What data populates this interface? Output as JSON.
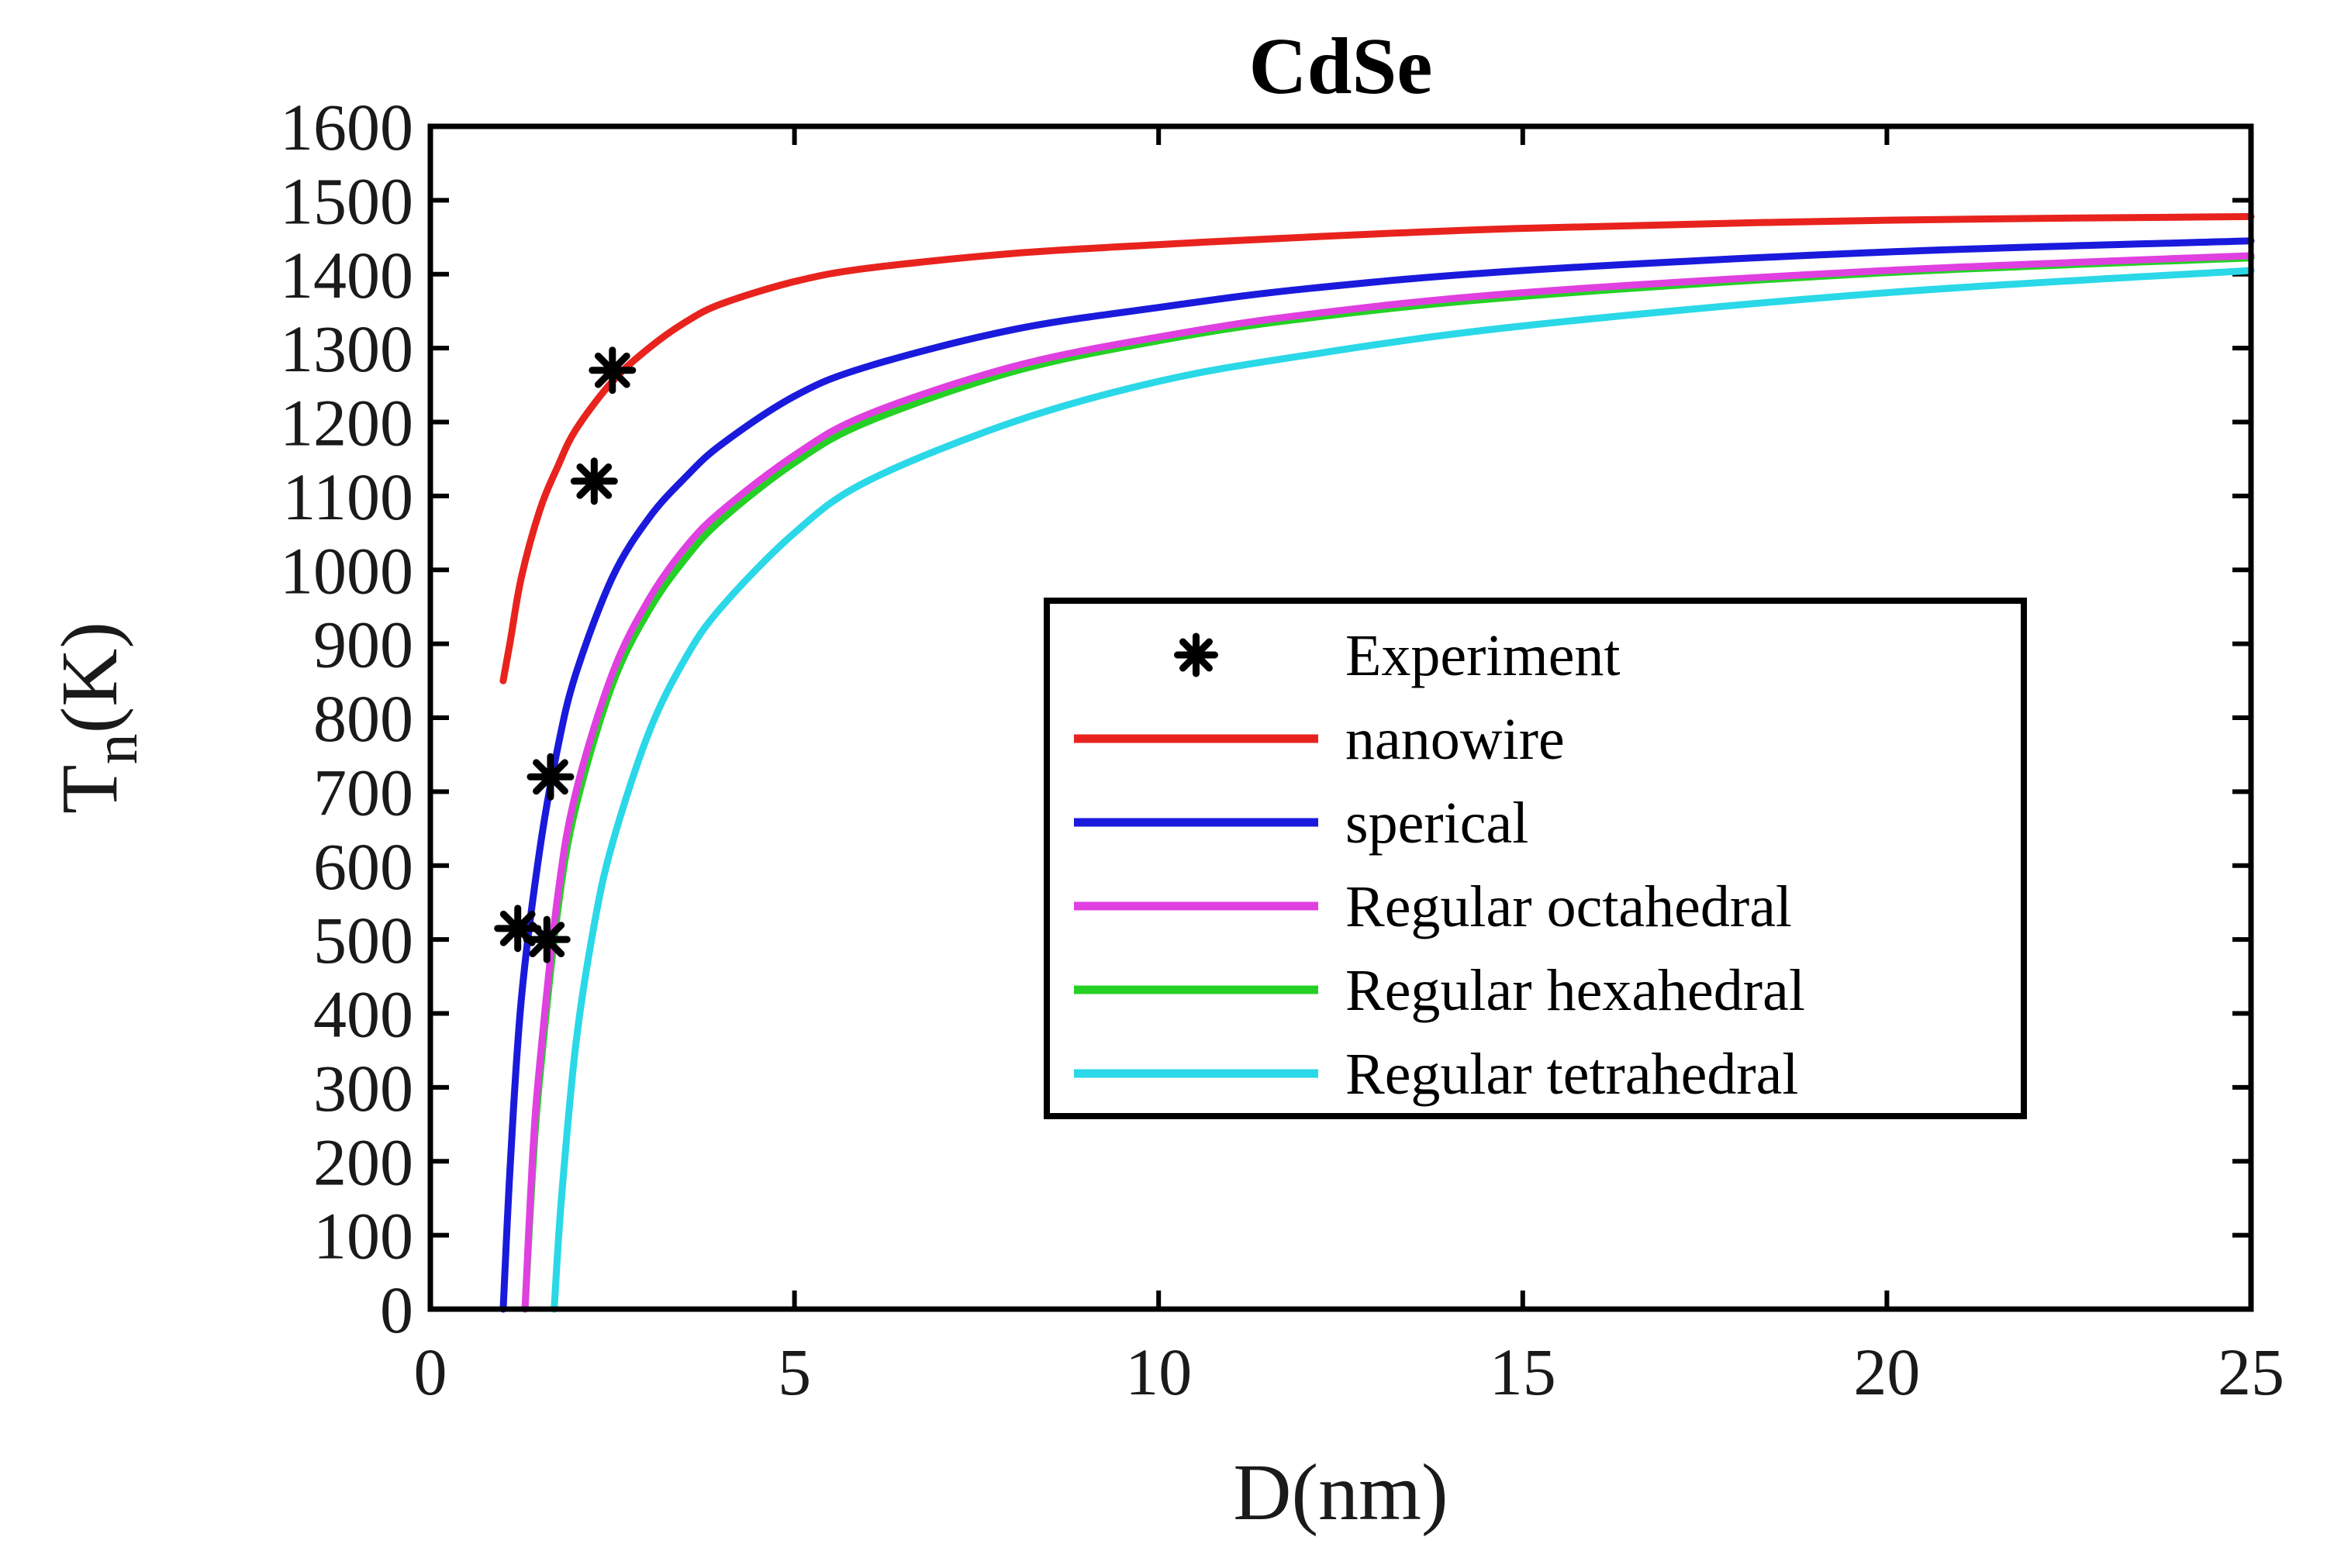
{
  "chart_data": {
    "type": "line",
    "title": "CdSe",
    "xlabel": "D(nm)",
    "ylabel": {
      "main": "T",
      "sub": "n",
      "unit": "(K)"
    },
    "xlim": [
      0,
      25
    ],
    "ylim": [
      0,
      1600
    ],
    "xticks": [
      0,
      5,
      10,
      15,
      20,
      25
    ],
    "yticks": [
      0,
      100,
      200,
      300,
      400,
      500,
      600,
      700,
      800,
      900,
      1000,
      1100,
      1200,
      1300,
      1400,
      1500,
      1600
    ],
    "legend_position": "center-right",
    "experiment": {
      "name": "Experiment",
      "points": [
        [
          2.5,
          1270
        ],
        [
          2.25,
          1120
        ],
        [
          1.65,
          720
        ],
        [
          1.2,
          515
        ],
        [
          1.6,
          500
        ]
      ]
    },
    "series": [
      {
        "name": "nanowire",
        "color": "#e8231e",
        "x": [
          1.0,
          1.1,
          1.25,
          1.5,
          1.75,
          2.0,
          2.5,
          3.0,
          3.5,
          4.0,
          5.0,
          6.0,
          8.0,
          10.0,
          12.0,
          15.0,
          20.0,
          25.0
        ],
        "y": [
          850,
          905,
          990,
          1080,
          1140,
          1190,
          1255,
          1300,
          1335,
          1360,
          1390,
          1408,
          1428,
          1440,
          1450,
          1462,
          1473,
          1478
        ]
      },
      {
        "name": "sperical",
        "color": "#1a1adc",
        "x": [
          1.0,
          1.1,
          1.25,
          1.5,
          1.75,
          2.0,
          2.5,
          3.0,
          3.5,
          4.0,
          5.0,
          6.0,
          8.0,
          10.0,
          12.0,
          15.0,
          20.0,
          25.0
        ],
        "y": [
          0,
          200,
          420,
          620,
          760,
          860,
          990,
          1070,
          1125,
          1170,
          1235,
          1275,
          1325,
          1355,
          1380,
          1405,
          1430,
          1445
        ]
      },
      {
        "name": "Regular octahedral",
        "color": "#e040e0",
        "x": [
          1.3,
          1.4,
          1.5,
          1.75,
          2.0,
          2.5,
          3.0,
          3.5,
          4.0,
          5.0,
          6.0,
          8.0,
          10.0,
          12.0,
          15.0,
          20.0,
          25.0
        ],
        "y": [
          0,
          200,
          330,
          560,
          700,
          860,
          960,
          1030,
          1080,
          1155,
          1210,
          1275,
          1315,
          1345,
          1375,
          1405,
          1425
        ]
      },
      {
        "name": "Regular hexahedral",
        "color": "#25d025",
        "x": [
          1.3,
          1.4,
          1.5,
          1.75,
          2.0,
          2.5,
          3.0,
          3.5,
          4.0,
          5.0,
          6.0,
          8.0,
          10.0,
          12.0,
          15.0,
          20.0,
          25.0
        ],
        "y": [
          0,
          180,
          310,
          540,
          680,
          845,
          945,
          1015,
          1068,
          1145,
          1200,
          1268,
          1310,
          1340,
          1370,
          1402,
          1422
        ]
      },
      {
        "name": "Regular tetrahedral",
        "color": "#2ad8e8",
        "x": [
          1.7,
          1.8,
          2.0,
          2.25,
          2.5,
          3.0,
          3.5,
          4.0,
          5.0,
          6.0,
          8.0,
          10.0,
          12.0,
          15.0,
          20.0,
          25.0
        ],
        "y": [
          0,
          150,
          360,
          520,
          630,
          780,
          880,
          950,
          1050,
          1120,
          1200,
          1255,
          1290,
          1330,
          1375,
          1405
        ]
      }
    ]
  }
}
